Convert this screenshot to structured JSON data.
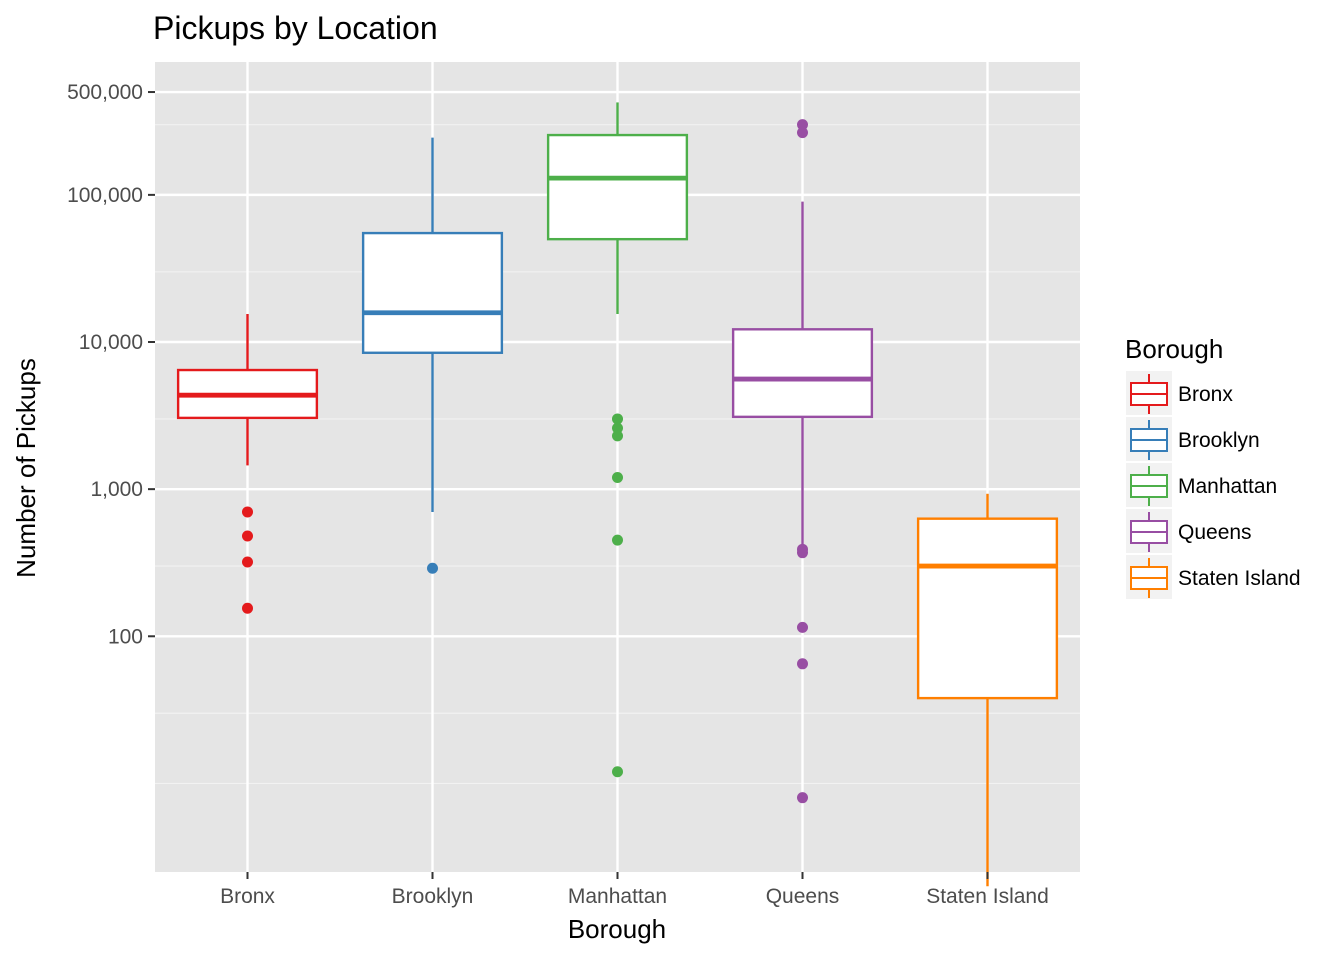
{
  "chart_data": {
    "type": "boxplot",
    "title": "Pickups by Location",
    "xlabel": "Borough",
    "ylabel": "Number of Pickups",
    "y_scale": "log10",
    "ylim": [
      2.5,
      800000
    ],
    "y_ticks": [
      {
        "value": 100,
        "label": "100"
      },
      {
        "value": 1000,
        "label": "1,000"
      },
      {
        "value": 10000,
        "label": "10,000"
      },
      {
        "value": 100000,
        "label": "100,000"
      },
      {
        "value": 500000,
        "label": "500,000"
      }
    ],
    "y_minor_gridlines": [
      10,
      30,
      300,
      3000,
      30000,
      300000
    ],
    "grid": true,
    "legend": {
      "title": "Borough",
      "position": "right"
    },
    "categories": [
      "Bronx",
      "Brooklyn",
      "Manhattan",
      "Queens",
      "Staten Island"
    ],
    "series": [
      {
        "name": "Bronx",
        "color": "#e41a1c",
        "whisker_low": 1450,
        "q1": 3050,
        "median": 4350,
        "q3": 6450,
        "whisker_high": 15500,
        "outliers": [
          700,
          480,
          320,
          155
        ]
      },
      {
        "name": "Brooklyn",
        "color": "#377eb8",
        "whisker_low": 700,
        "q1": 8450,
        "median": 15800,
        "q3": 55000,
        "whisker_high": 245000,
        "outliers": [
          290
        ]
      },
      {
        "name": "Manhattan",
        "color": "#4daf4a",
        "whisker_low": 15500,
        "q1": 50000,
        "median": 130000,
        "q3": 255000,
        "whisker_high": 425000,
        "outliers": [
          3000,
          2600,
          2300,
          1200,
          450,
          12
        ]
      },
      {
        "name": "Queens",
        "color": "#984ea3",
        "whisker_low": 420,
        "q1": 3100,
        "median": 5600,
        "q3": 12200,
        "whisker_high": 90000,
        "outliers": [
          390,
          370,
          115,
          65,
          8,
          265000,
          300000
        ]
      },
      {
        "name": "Staten Island",
        "color": "#ff7f00",
        "whisker_low": 2,
        "q1": 38,
        "median": 300,
        "q3": 630,
        "whisker_high": 930,
        "outliers": []
      }
    ]
  }
}
